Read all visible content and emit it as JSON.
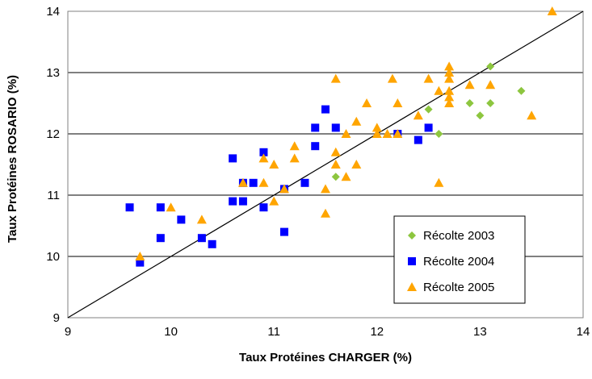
{
  "chart_data": {
    "type": "scatter",
    "title": "",
    "xlabel": "Taux Protéines CHARGER (%)",
    "ylabel": "Taux Protéines ROSARIO (%)",
    "xlim": [
      9,
      14
    ],
    "ylim": [
      9,
      14
    ],
    "x_ticks": [
      "9",
      "10",
      "11",
      "12",
      "13",
      "14"
    ],
    "y_ticks": [
      "9",
      "10",
      "11",
      "12",
      "13",
      "14"
    ],
    "grid": "horizontal",
    "reference_line": [
      [
        9,
        9
      ],
      [
        14,
        14
      ]
    ],
    "legend_position": "bottom-right",
    "series": [
      {
        "name": "Récolte 2003",
        "marker": "diamond",
        "color": "#8dc63f",
        "points": [
          [
            11.6,
            11.3
          ],
          [
            12.5,
            12.4
          ],
          [
            12.6,
            12.0
          ],
          [
            12.9,
            12.5
          ],
          [
            13.0,
            12.3
          ],
          [
            13.1,
            12.5
          ],
          [
            13.1,
            13.1
          ],
          [
            13.4,
            12.7
          ]
        ]
      },
      {
        "name": "Récolte 2004",
        "marker": "square",
        "color": "#0000ff",
        "points": [
          [
            9.6,
            10.8
          ],
          [
            9.7,
            9.9
          ],
          [
            9.9,
            10.8
          ],
          [
            9.9,
            10.3
          ],
          [
            10.1,
            10.6
          ],
          [
            10.3,
            10.3
          ],
          [
            10.4,
            10.2
          ],
          [
            10.6,
            10.9
          ],
          [
            10.6,
            11.6
          ],
          [
            10.7,
            10.9
          ],
          [
            10.7,
            11.2
          ],
          [
            10.8,
            11.2
          ],
          [
            10.9,
            11.7
          ],
          [
            10.9,
            10.8
          ],
          [
            11.1,
            11.1
          ],
          [
            11.1,
            10.4
          ],
          [
            11.3,
            11.2
          ],
          [
            11.4,
            12.1
          ],
          [
            11.4,
            11.8
          ],
          [
            11.5,
            12.4
          ],
          [
            11.6,
            12.1
          ],
          [
            12.2,
            12.0
          ],
          [
            12.4,
            11.9
          ],
          [
            12.5,
            12.1
          ]
        ]
      },
      {
        "name": "Récolte 2005",
        "marker": "triangle",
        "color": "#ffa500",
        "points": [
          [
            9.7,
            10.0
          ],
          [
            10.0,
            10.8
          ],
          [
            10.3,
            10.6
          ],
          [
            10.7,
            11.2
          ],
          [
            10.9,
            11.6
          ],
          [
            10.9,
            11.2
          ],
          [
            11.0,
            11.5
          ],
          [
            11.0,
            10.9
          ],
          [
            11.1,
            11.1
          ],
          [
            11.2,
            11.8
          ],
          [
            11.2,
            11.6
          ],
          [
            11.5,
            11.1
          ],
          [
            11.5,
            10.7
          ],
          [
            11.6,
            12.9
          ],
          [
            11.6,
            11.7
          ],
          [
            11.6,
            11.5
          ],
          [
            11.7,
            12.0
          ],
          [
            11.7,
            11.3
          ],
          [
            11.8,
            12.2
          ],
          [
            11.8,
            11.5
          ],
          [
            11.9,
            12.5
          ],
          [
            12.0,
            12.1
          ],
          [
            12.0,
            12.0
          ],
          [
            12.1,
            12.0
          ],
          [
            12.15,
            12.9
          ],
          [
            12.2,
            12.5
          ],
          [
            12.2,
            12.0
          ],
          [
            12.4,
            12.3
          ],
          [
            12.5,
            12.9
          ],
          [
            12.6,
            12.7
          ],
          [
            12.6,
            11.2
          ],
          [
            12.7,
            13.1
          ],
          [
            12.7,
            13.0
          ],
          [
            12.7,
            12.9
          ],
          [
            12.7,
            12.7
          ],
          [
            12.7,
            12.6
          ],
          [
            12.7,
            12.5
          ],
          [
            12.9,
            12.8
          ],
          [
            13.1,
            12.8
          ],
          [
            13.5,
            12.3
          ],
          [
            13.7,
            14.0
          ]
        ]
      }
    ]
  }
}
